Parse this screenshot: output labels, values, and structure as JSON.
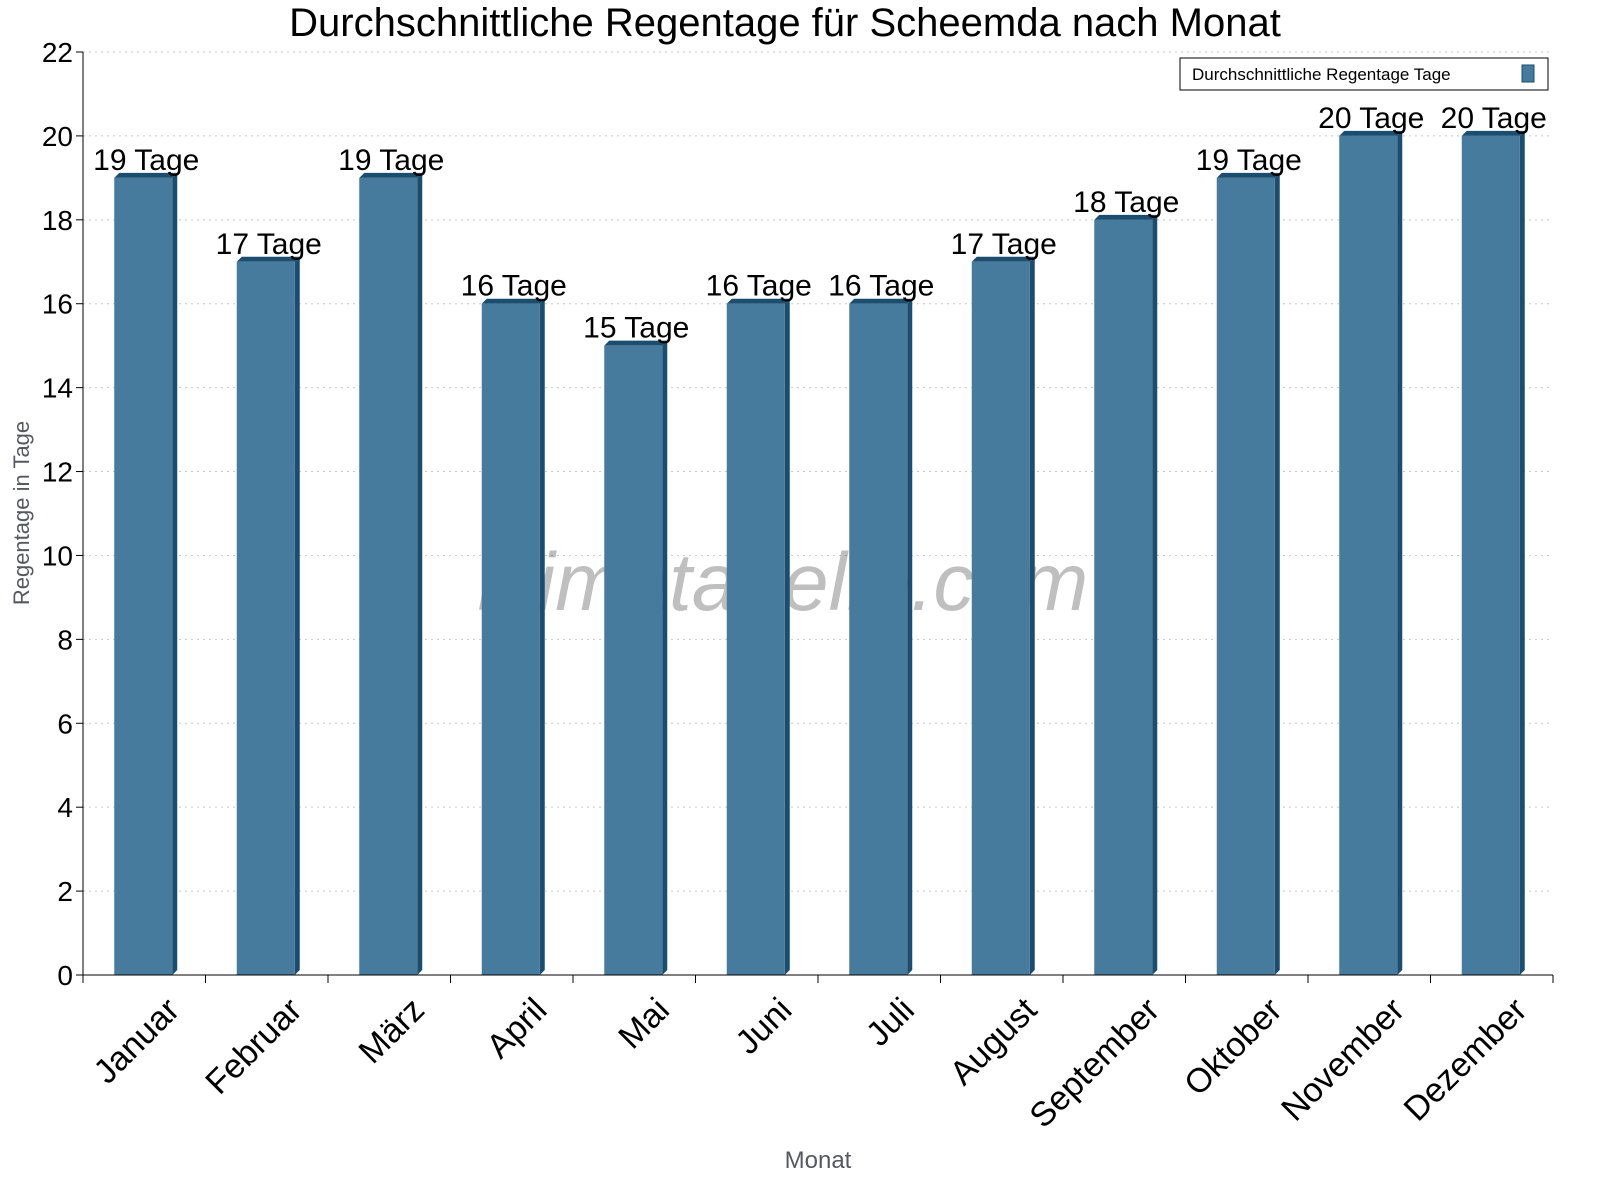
{
  "chart_data": {
    "type": "bar",
    "title": "Durchschnittliche Regentage für Scheemda nach Monat",
    "xlabel": "Monat",
    "ylabel": "Regentage in Tage",
    "categories": [
      "Januar",
      "Februar",
      "März",
      "April",
      "Mai",
      "Juni",
      "Juli",
      "August",
      "September",
      "Oktober",
      "November",
      "Dezember"
    ],
    "series": [
      {
        "name": "Durchschnittliche Regentage Tage",
        "values": [
          19,
          17,
          19,
          16,
          15,
          16,
          16,
          17,
          18,
          19,
          20,
          20
        ],
        "color": "#467b9d",
        "side_color": "#1b4d6e"
      }
    ],
    "data_labels": [
      "19 Tage",
      "17 Tage",
      "19 Tage",
      "16 Tage",
      "15 Tage",
      "16 Tage",
      "16 Tage",
      "17 Tage",
      "18 Tage",
      "19 Tage",
      "20 Tage",
      "20 Tage"
    ],
    "ylim": [
      0,
      22
    ],
    "yticks": [
      0,
      2,
      4,
      6,
      8,
      10,
      12,
      14,
      16,
      18,
      20,
      22
    ],
    "grid": true,
    "legend_position": "top-right",
    "watermark": "klimatabelle.com"
  }
}
